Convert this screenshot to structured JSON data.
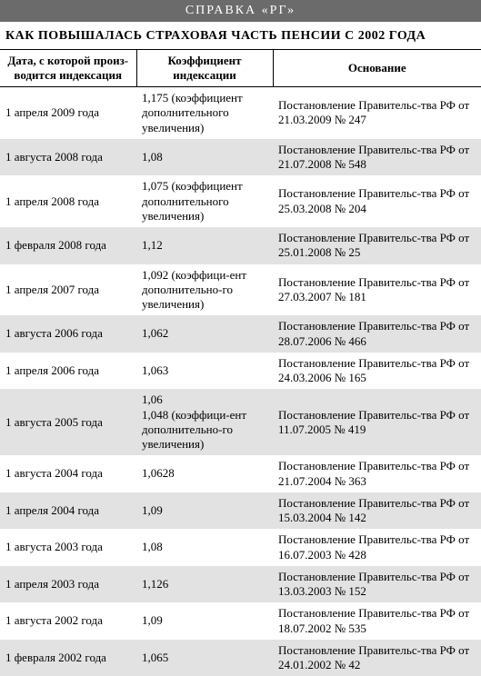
{
  "header_bar": "СПРАВКА «РГ»",
  "title": "КАК ПОВЫШАЛАСЬ СТРАХОВАЯ ЧАСТЬ ПЕНСИИ С 2002 ГОДА",
  "columns": [
    "Дата, с которой произ-водится индексация",
    "Коэффициент индексации",
    "Основание"
  ],
  "rows": [
    {
      "date": "1 апреля 2009 года",
      "coef": "1,175 (коэффициент дополнительного увеличения)",
      "basis": "Постановление Правительс-тва РФ от 21.03.2009 № 247"
    },
    {
      "date": "1 августа 2008 года",
      "coef": "1,08",
      "basis": "Постановление Правительс-тва РФ от 21.07.2008 № 548"
    },
    {
      "date": "1 апреля 2008 года",
      "coef": "1,075 (коэффициент дополнительного увеличения)",
      "basis": "Постановление Правительс-тва РФ от 25.03.2008 № 204"
    },
    {
      "date": "1 февраля 2008 года",
      "coef": "1,12",
      "basis": "Постановление Правительс-тва РФ от 25.01.2008 № 25"
    },
    {
      "date": "1 апреля 2007 года",
      "coef": "1,092   (коэффици-ент дополнительно-го увеличения)",
      "basis": "Постановление Правительс-тва РФ от 27.03.2007 № 181"
    },
    {
      "date": "1 августа 2006 года",
      "coef": "1,062",
      "basis": "Постановление Правительс-тва РФ от 28.07.2006 № 466"
    },
    {
      "date": "1 апреля 2006 года",
      "coef": "1,063",
      "basis": "Постановление Правительс-тва РФ от 24.03.2006 № 165"
    },
    {
      "date": "1 августа 2005 года",
      "coef": "1,06\n1,048   (коэффици-ент дополнительно-го увеличения)",
      "basis": "Постановление Правительс-тва РФ от 11.07.2005 № 419"
    },
    {
      "date": "1 августа 2004 года",
      "coef": "1,0628",
      "basis": "Постановление Правительс-тва РФ от 21.07.2004 № 363"
    },
    {
      "date": "1 апреля 2004 года",
      "coef": "1,09",
      "basis": "Постановление Правительс-тва РФ от 15.03.2004 № 142"
    },
    {
      "date": "1 августа 2003 года",
      "coef": "1,08",
      "basis": "Постановление Правительс-тва РФ от 16.07.2003 № 428"
    },
    {
      "date": "1 апреля 2003 года",
      "coef": "1,126",
      "basis": "Постановление Правительс-тва РФ от 13.03.2003 № 152"
    },
    {
      "date": "1 августа 2002 года",
      "coef": "1,09",
      "basis": "Постановление Правительс-тва РФ от 18.07.2002 № 535"
    },
    {
      "date": "1 февраля 2002 года",
      "coef": "1,065",
      "basis": "Постановление Правительс-тва РФ от 24.01.2002 № 42"
    }
  ]
}
